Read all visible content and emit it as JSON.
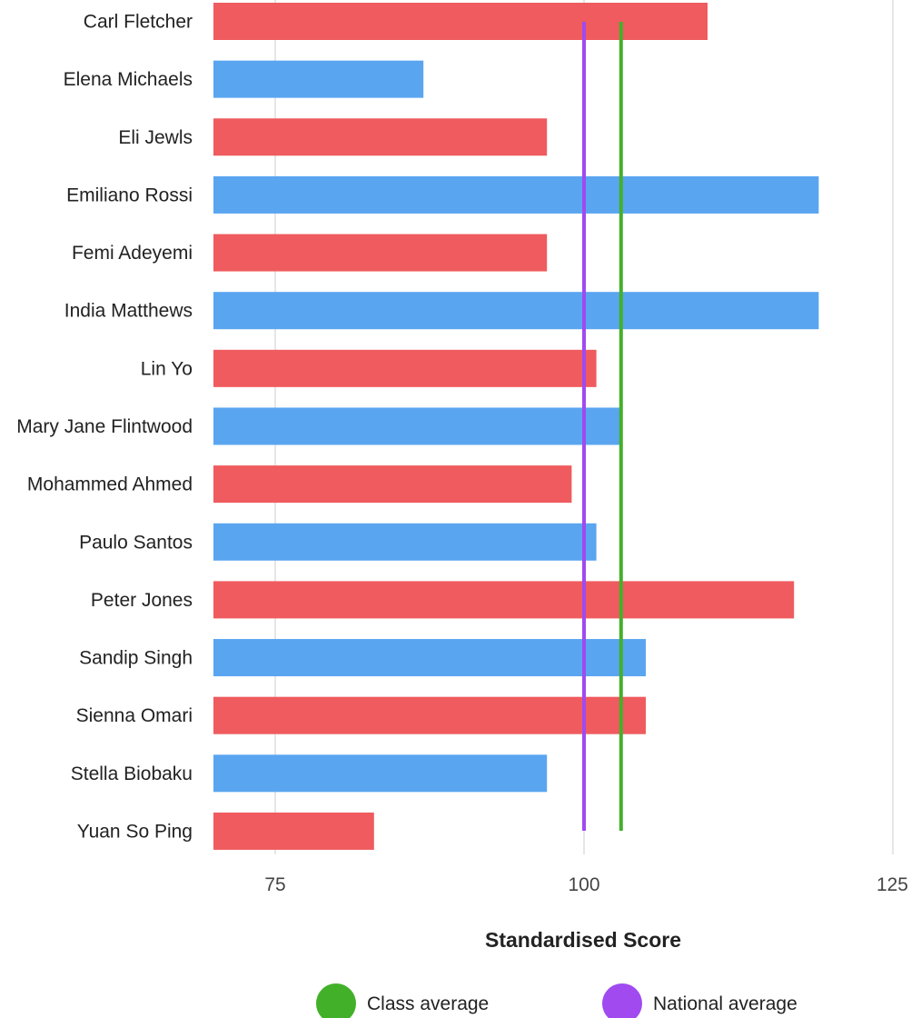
{
  "chart_data": {
    "type": "bar",
    "orientation": "horizontal",
    "categories": [
      "Carl Fletcher",
      "Elena Michaels",
      "Eli Jewls",
      "Emiliano Rossi",
      "Femi Adeyemi",
      "India Matthews",
      "Lin Yo",
      "Mary Jane Flintwood",
      "Mohammed Ahmed",
      "Paulo Santos",
      "Peter Jones",
      "Sandip Singh",
      "Sienna Omari",
      "Stella Biobaku",
      "Yuan So Ping"
    ],
    "values": [
      110,
      87,
      97,
      119,
      97,
      119,
      101,
      103,
      99,
      101,
      117,
      105,
      105,
      97,
      83
    ],
    "bar_colors": [
      "#ef5b5e",
      "#5aa5f0",
      "#ef5b5e",
      "#5aa5f0",
      "#ef5b5e",
      "#5aa5f0",
      "#ef5b5e",
      "#5aa5f0",
      "#ef5b5e",
      "#5aa5f0",
      "#ef5b5e",
      "#5aa5f0",
      "#ef5b5e",
      "#5aa5f0",
      "#ef5b5e"
    ],
    "xlabel": "Standardised Score",
    "xlim": [
      70,
      125
    ],
    "xticks": [
      75,
      100,
      125
    ],
    "grid": true,
    "reference_lines": [
      {
        "name": "Class average",
        "value": 103,
        "color": "#43b02a"
      },
      {
        "name": "National average",
        "value": 100,
        "color": "#a04af0"
      }
    ],
    "legend_position": "bottom"
  }
}
